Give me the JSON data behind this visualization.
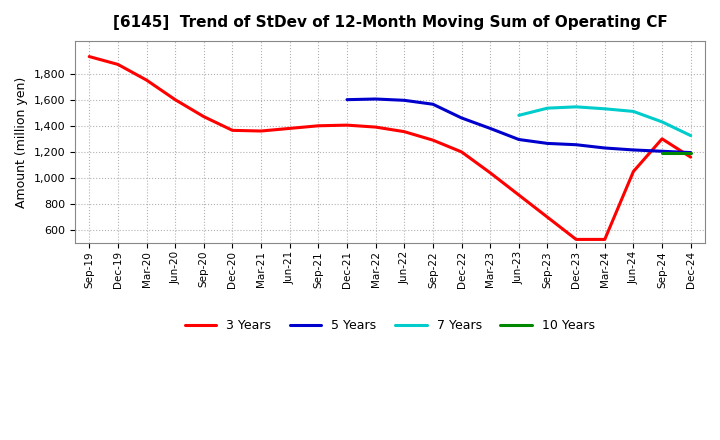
{
  "title": "[6145]  Trend of StDev of 12-Month Moving Sum of Operating CF",
  "ylabel": "Amount (million yen)",
  "background_color": "#ffffff",
  "plot_bg_color": "#ffffff",
  "grid_color": "#aaaaaa",
  "ylim": [
    500,
    2050
  ],
  "yticks": [
    600,
    800,
    1000,
    1200,
    1400,
    1600,
    1800
  ],
  "x_labels": [
    "Sep-19",
    "Dec-19",
    "Mar-20",
    "Jun-20",
    "Sep-20",
    "Dec-20",
    "Mar-21",
    "Jun-21",
    "Sep-21",
    "Dec-21",
    "Mar-22",
    "Jun-22",
    "Sep-22",
    "Dec-22",
    "Mar-23",
    "Jun-23",
    "Sep-23",
    "Dec-23",
    "Mar-24",
    "Jun-24",
    "Sep-24",
    "Dec-24"
  ],
  "legend_labels": [
    "3 Years",
    "5 Years",
    "7 Years",
    "10 Years"
  ],
  "legend_colors": [
    "#ff0000",
    "#0000cc",
    "#00cccc",
    "#008800"
  ],
  "series": {
    "3 Years": {
      "color": "#ff0000",
      "x": [
        0,
        1,
        2,
        3,
        4,
        5,
        6,
        7,
        8,
        9,
        10,
        11,
        12,
        13,
        14,
        15,
        16,
        17,
        18,
        19,
        20,
        21
      ],
      "y": [
        1930,
        1870,
        1750,
        1600,
        1470,
        1365,
        1360,
        1380,
        1400,
        1405,
        1390,
        1355,
        1290,
        1200,
        1040,
        870,
        700,
        530,
        530,
        1050,
        1300,
        1160
      ]
    },
    "5 Years": {
      "color": "#0000cc",
      "x": [
        9,
        10,
        11,
        12,
        13,
        14,
        15,
        16,
        17,
        18,
        19,
        20,
        21
      ],
      "y": [
        1600,
        1605,
        1595,
        1565,
        1460,
        1380,
        1295,
        1265,
        1255,
        1230,
        1215,
        1205,
        1195
      ]
    },
    "7 Years": {
      "color": "#00cccc",
      "x": [
        15,
        16,
        17,
        18,
        19,
        20,
        21
      ],
      "y": [
        1480,
        1535,
        1545,
        1530,
        1510,
        1430,
        1325
      ]
    },
    "10 Years": {
      "color": "#008800",
      "x": [
        20,
        21
      ],
      "y": [
        1195,
        1195
      ]
    }
  }
}
